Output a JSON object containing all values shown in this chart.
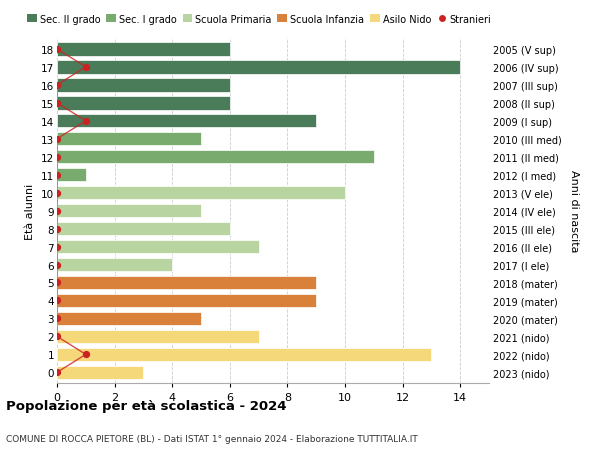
{
  "ages": [
    18,
    17,
    16,
    15,
    14,
    13,
    12,
    11,
    10,
    9,
    8,
    7,
    6,
    5,
    4,
    3,
    2,
    1,
    0
  ],
  "right_labels": [
    "2005 (V sup)",
    "2006 (IV sup)",
    "2007 (III sup)",
    "2008 (II sup)",
    "2009 (I sup)",
    "2010 (III med)",
    "2011 (II med)",
    "2012 (I med)",
    "2013 (V ele)",
    "2014 (IV ele)",
    "2015 (III ele)",
    "2016 (II ele)",
    "2017 (I ele)",
    "2018 (mater)",
    "2019 (mater)",
    "2020 (mater)",
    "2021 (nido)",
    "2022 (nido)",
    "2023 (nido)"
  ],
  "bar_values": [
    6,
    14,
    6,
    6,
    9,
    5,
    11,
    1,
    10,
    5,
    6,
    7,
    4,
    9,
    9,
    5,
    7,
    13,
    3
  ],
  "bar_colors": [
    "#4a7c59",
    "#4a7c59",
    "#4a7c59",
    "#4a7c59",
    "#4a7c59",
    "#7aab6e",
    "#7aab6e",
    "#7aab6e",
    "#b8d4a0",
    "#b8d4a0",
    "#b8d4a0",
    "#b8d4a0",
    "#b8d4a0",
    "#d9813a",
    "#d9813a",
    "#d9813a",
    "#f5d87a",
    "#f5d87a",
    "#f5d87a"
  ],
  "stranieri_values": [
    0,
    1,
    0,
    0,
    1,
    0,
    0,
    0,
    0,
    0,
    0,
    0,
    0,
    0,
    0,
    0,
    0,
    1,
    0
  ],
  "legend_labels": [
    "Sec. II grado",
    "Sec. I grado",
    "Scuola Primaria",
    "Scuola Infanzia",
    "Asilo Nido",
    "Stranieri"
  ],
  "legend_colors": [
    "#4a7c59",
    "#7aab6e",
    "#b8d4a0",
    "#d9813a",
    "#f5d87a",
    "#cc2222"
  ],
  "title": "Popolazione per età scolastica - 2024",
  "subtitle": "COMUNE DI ROCCA PIETORE (BL) - Dati ISTAT 1° gennaio 2024 - Elaborazione TUTTITALIA.IT",
  "ylabel_left": "Età alunni",
  "ylabel_right": "Anni di nascita",
  "xlim": [
    0,
    15
  ],
  "background_color": "#ffffff",
  "grid_color": "#cccccc",
  "bar_height": 0.75
}
